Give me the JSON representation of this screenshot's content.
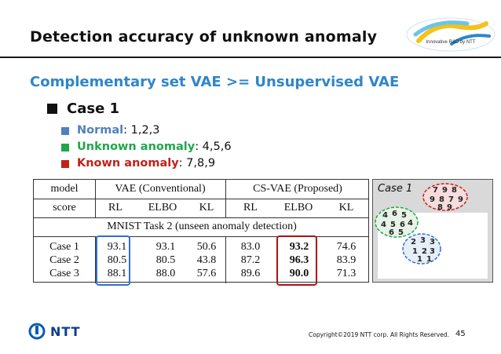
{
  "slide": {
    "title": "Detection accuracy of unknown anomaly",
    "logo_text": "Innovative R&D by NTT",
    "subtitle": "Complementary set VAE >= Unsupervised VAE",
    "case_heading": "Case 1",
    "bullets": [
      {
        "label": "Normal",
        "value": ": 1,2,3",
        "color": "#4f81bd"
      },
      {
        "label": "Unknown anomaly",
        "value": ": 4,5,6",
        "color": "#1ea84a"
      },
      {
        "label": "Known anomaly",
        "value": ": 7,8,9",
        "color": "#c0221a"
      }
    ]
  },
  "table": {
    "header": {
      "model": "model",
      "vae": "VAE (Conventional)",
      "csvae": "CS-VAE (Proposed)"
    },
    "score_row": [
      "score",
      "RL",
      "ELBO",
      "KL",
      "RL",
      "ELBO",
      "KL"
    ],
    "section_title": "MNIST Task 2 (unseen anomaly detection)",
    "rows": [
      {
        "case": "Case 1",
        "values": [
          "93.1",
          "93.1",
          "50.6",
          "83.0",
          "93.2",
          "74.6"
        ]
      },
      {
        "case": "Case 2",
        "values": [
          "80.5",
          "80.5",
          "43.8",
          "87.2",
          "96.3",
          "83.9"
        ]
      },
      {
        "case": "Case 3",
        "values": [
          "88.1",
          "88.0",
          "57.6",
          "89.6",
          "90.0",
          "71.3"
        ]
      }
    ]
  },
  "case_panel": {
    "label": "Case 1"
  },
  "footer": {
    "brand": "NTT",
    "copyright": "Copyright©2019  NTT corp. All Rights Reserved.",
    "page": "45"
  }
}
